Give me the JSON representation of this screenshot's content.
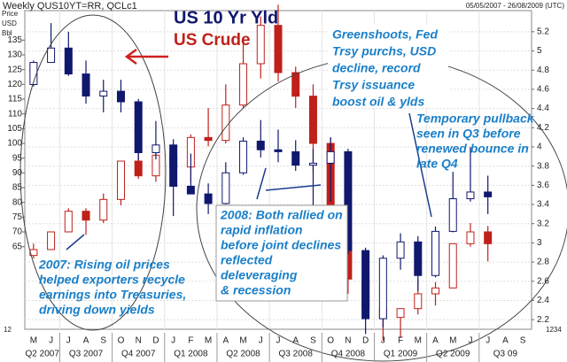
{
  "chart_data": {
    "type": "candlestick",
    "title": "Weekly QUS10YT=RR, QCLc1",
    "date_range": "05/05/2007 - 26/08/2009 (UTC)",
    "y_axis_label": [
      "Price",
      "USD",
      "Bbl"
    ],
    "left_axis_stub": "12",
    "right_axis_stub": "1234",
    "categories": [
      "M",
      "J",
      "J",
      "A",
      "S",
      "O",
      "N",
      "D",
      "J",
      "F",
      "M",
      "A",
      "M",
      "J",
      "J",
      "A",
      "S",
      "O",
      "N",
      "D",
      "J",
      "F",
      "M",
      "A",
      "M",
      "J",
      "J",
      "A",
      "S"
    ],
    "quarters": [
      "Q2 2007",
      "Q3 2007",
      "Q4 2007",
      "Q1 2008",
      "Q2 2008",
      "Q3 2008",
      "Q4 2008",
      "Q1 2009",
      "Q2 2009",
      "Q3 09"
    ],
    "ylim": [
      37,
      145
    ],
    "yticks": [
      65,
      70,
      75,
      80,
      85,
      90,
      95,
      100,
      105,
      110,
      115,
      120,
      125,
      130,
      135
    ],
    "y2lim": [
      2.1,
      5.42
    ],
    "y2ticks": [
      2.2,
      2.4,
      2.6,
      2.8,
      3,
      3.2,
      3.4,
      3.6,
      3.8,
      4,
      4.2,
      4.4,
      4.6,
      4.8,
      5,
      5.2
    ],
    "grid": true,
    "series": [
      {
        "name": "US Crude",
        "color": "#c0201a",
        "open": [
          62,
          64,
          70,
          77,
          74,
          81,
          94,
          89,
          96,
          92,
          102,
          101,
          113,
          127,
          140,
          124,
          116,
          100,
          67,
          54,
          44,
          41,
          44,
          49,
          51,
          66,
          70,
          null,
          null
        ],
        "high": [
          66,
          70,
          78,
          78,
          83,
          94,
          99,
          97,
          100,
          103,
          112,
          120,
          135,
          143,
          147,
          126,
          120,
          102,
          72,
          56,
          48,
          44,
          54,
          53,
          66,
          73,
          72,
          null,
          null
        ],
        "low": [
          61,
          64,
          70,
          69,
          73,
          79,
          88,
          87,
          86,
          87,
          99,
          100,
          112,
          122,
          121,
          112,
          90,
          63,
          49,
          40,
          33,
          34,
          42,
          45,
          51,
          65,
          60,
          null,
          null
        ],
        "close": [
          64,
          70,
          77,
          74,
          81,
          94,
          89,
          96,
          92,
          102,
          101,
          113,
          127,
          140,
          124,
          116,
          100,
          67,
          54,
          44,
          41,
          44,
          49,
          51,
          66,
          70,
          66,
          null,
          null
        ]
      },
      {
        "name": "US 10 Yr Yld",
        "color": "#10186e",
        "axis": "y2",
        "open": [
          4.65,
          4.88,
          5.03,
          4.76,
          4.53,
          4.58,
          4.47,
          3.94,
          4.02,
          3.59,
          3.51,
          3.41,
          3.73,
          4.06,
          3.97,
          3.95,
          3.81,
          3.83,
          3.95,
          2.92,
          2.21,
          2.84,
          3.01,
          2.66,
          3.12,
          3.46,
          3.53,
          null,
          null
        ],
        "high": [
          4.9,
          5.29,
          5.2,
          4.9,
          4.7,
          4.7,
          4.5,
          4.27,
          4.08,
          3.93,
          3.62,
          3.84,
          4.1,
          4.28,
          4.18,
          4.07,
          3.98,
          4.1,
          3.98,
          2.95,
          2.87,
          3.1,
          3.07,
          3.17,
          3.74,
          4,
          3.7,
          null,
          null
        ],
        "low": [
          4.63,
          4.88,
          4.74,
          4.45,
          4.36,
          4.36,
          3.86,
          3.87,
          3.28,
          3.54,
          3.3,
          3.4,
          3.71,
          3.89,
          3.84,
          3.75,
          3.34,
          3.43,
          2.88,
          2.05,
          2.12,
          2.72,
          2.5,
          2.64,
          3.11,
          3.43,
          3.3,
          null,
          null
        ],
        "close": [
          4.88,
          5.03,
          4.76,
          4.53,
          4.58,
          4.47,
          3.94,
          4.02,
          3.59,
          3.51,
          3.41,
          3.73,
          4.06,
          3.97,
          3.95,
          3.81,
          3.83,
          3.95,
          2.92,
          2.21,
          2.84,
          3.01,
          2.66,
          3.12,
          3.46,
          3.53,
          3.48,
          null,
          null
        ]
      }
    ],
    "annotations": [
      [
        "2007: Rising oil prices",
        "helped exporters recycle",
        "earnings into Treasuries,",
        "driving down yields"
      ],
      [
        "2008: Both rallied on",
        "rapid inflation",
        "before joint declines",
        "reflected",
        "deleveraging",
        "& recession"
      ],
      [
        "Greenshoots, Fed",
        "Trsy purchs, USD",
        "decline, record",
        "Trsy issuance",
        "boost oil & ylds"
      ],
      [
        "Temporary pullback",
        "seen in Q3 before",
        "renewed bounce in",
        "late Q4"
      ]
    ]
  }
}
